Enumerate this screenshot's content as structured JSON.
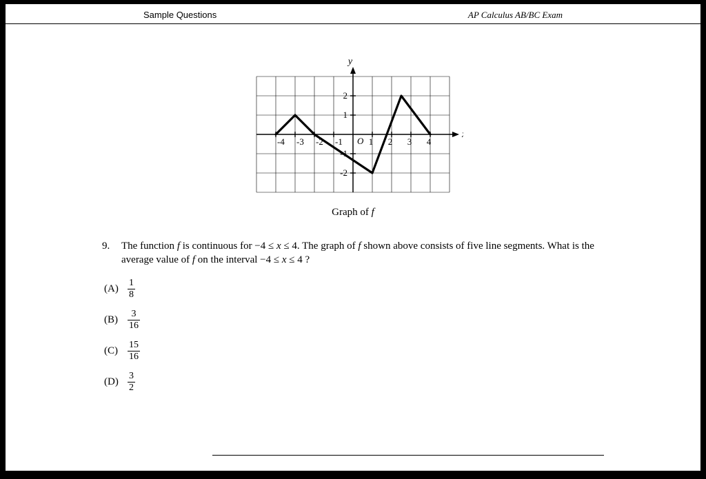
{
  "header": {
    "left": "Sample Questions",
    "right": "AP Calculus AB/BC Exam"
  },
  "graph": {
    "x_label": "x",
    "y_label": "y",
    "origin_label": "O",
    "x_ticks": [
      -4,
      -3,
      -2,
      -1,
      1,
      2,
      3,
      4
    ],
    "x_tick_labels": [
      "-4",
      "-3",
      "-2",
      "-1",
      "1",
      "2",
      "3",
      "4"
    ],
    "y_ticks": [
      -2,
      -1,
      1,
      2
    ],
    "y_tick_labels": [
      "-2",
      "-1",
      "1",
      "2"
    ],
    "xlim": [
      -5,
      5
    ],
    "ylim": [
      -3,
      3
    ],
    "grid_color": "#000000",
    "grid_width": 0.6,
    "axis_color": "#000000",
    "axis_width": 1.5,
    "function_color": "#000000",
    "function_width": 3.2,
    "function_points": [
      [
        -4,
        0
      ],
      [
        -3,
        1
      ],
      [
        -2,
        0
      ],
      [
        1,
        -2
      ],
      [
        2.5,
        2
      ],
      [
        4,
        0
      ]
    ],
    "caption_prefix": "Graph of ",
    "caption_f": "f"
  },
  "question": {
    "number": "9.",
    "text_parts": {
      "t1": "The function ",
      "f1": "f",
      "t2": " is continuous for −4 ≤ ",
      "x1": "x",
      "t3": " ≤ 4. The graph of ",
      "f2": "f",
      "t4": " shown above consists of five line segments. What is the average value of ",
      "f3": "f",
      "t5": " on the interval −4 ≤ ",
      "x2": "x",
      "t6": " ≤ 4 ?"
    }
  },
  "choices": [
    {
      "label": "(A)",
      "num": "1",
      "den": "8"
    },
    {
      "label": "(B)",
      "num": "3",
      "den": "16"
    },
    {
      "label": "(C)",
      "num": "15",
      "den": "16"
    },
    {
      "label": "(D)",
      "num": "3",
      "den": "2"
    }
  ]
}
